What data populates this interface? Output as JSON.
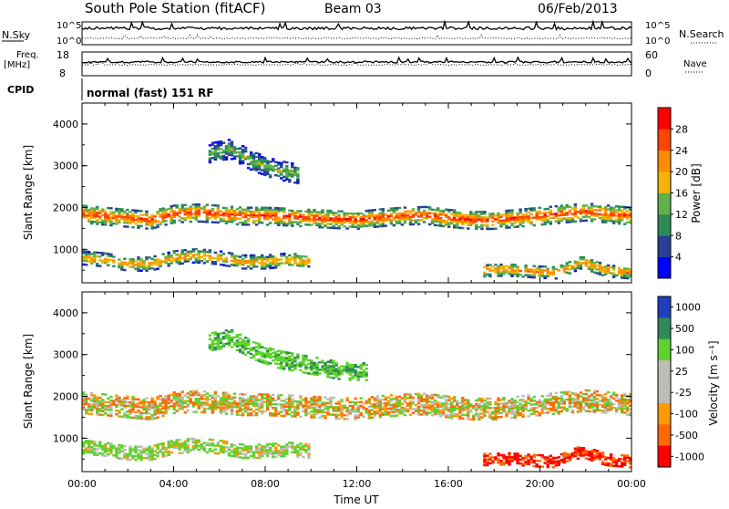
{
  "header": {
    "station": "South Pole Station (fitACF)",
    "beam": "Beam 03",
    "date": "06/Feb/2013"
  },
  "strips": {
    "nsky_label": "N.Sky",
    "nsky_hi": "10^5",
    "nsky_lo": "10^0",
    "nsearch_label": "N.Search",
    "nsearch_hi": "10^5",
    "nsearch_lo": "10^0",
    "freq_label": "Freq.",
    "freq_unit": "[MHz]",
    "freq_hi": "18",
    "freq_lo": "8",
    "nave_label": "Nave",
    "nave_hi": "60",
    "nave_lo": "0",
    "cpid_label": "CPID",
    "cpid_text": "normal (fast) 151 RF"
  },
  "chart_data": [
    {
      "type": "heatmap",
      "name": "power",
      "ylabel": "Slant Range [km]",
      "y_ticks": [
        "1000",
        "2000",
        "3000",
        "4000"
      ],
      "ylim": [
        200,
        4500
      ],
      "xlim": [
        0,
        24
      ],
      "colorbar_label": "Power [dB]",
      "colorbar_ticks": [
        "4",
        "8",
        "12",
        "16",
        "20",
        "24",
        "28"
      ],
      "colors": [
        "#0000ff",
        "#2a3f9a",
        "#2e8b57",
        "#5fb24a",
        "#f2b400",
        "#ff8c00",
        "#ff4500",
        "#ff0000"
      ],
      "bands": [
        {
          "t0": 0.0,
          "t1": 24.0,
          "center": [
            1850,
            1800,
            1750,
            1700,
            1850,
            1880,
            1850,
            1800,
            1800,
            1780,
            1750,
            1720,
            1700,
            1760,
            1800,
            1820,
            1750,
            1700,
            1700,
            1750,
            1800,
            1850,
            1900,
            1850,
            1800
          ],
          "width": 420,
          "peak_db": 28
        },
        {
          "t0": 0.0,
          "t1": 10.0,
          "center": [
            800,
            750,
            650,
            650,
            800,
            850,
            800,
            700,
            700,
            750,
            700
          ],
          "width": 320,
          "peak_db": 22
        },
        {
          "t0": 5.5,
          "t1": 9.5,
          "center": [
            3300,
            3400,
            3100,
            2900,
            2800
          ],
          "width": 450,
          "peak_db": 14
        },
        {
          "t0": 17.5,
          "t1": 24.0,
          "center": [
            500,
            520,
            480,
            450,
            700,
            500,
            450
          ],
          "width": 300,
          "peak_db": 24
        }
      ]
    },
    {
      "type": "heatmap",
      "name": "velocity",
      "xlabel": "Time UT",
      "ylabel": "Slant Range [km]",
      "x_ticks": [
        "00:00",
        "04:00",
        "08:00",
        "12:00",
        "16:00",
        "20:00",
        "00:00"
      ],
      "y_ticks": [
        "1000",
        "2000",
        "3000",
        "4000"
      ],
      "ylim": [
        200,
        4500
      ],
      "xlim": [
        0,
        24
      ],
      "colorbar_label": "Velocity [m s⁻¹]",
      "colorbar_ticks": [
        "1000",
        "500",
        "100",
        "25",
        "-25",
        "-100",
        "-500",
        "-1000"
      ],
      "colors": [
        "#1f3fbf",
        "#2e8b57",
        "#5fd22e",
        "#bdbdb6",
        "#bdbdb6",
        "#ff9a00",
        "#ff6a00",
        "#ff0000"
      ],
      "bands": [
        {
          "t0": 0.0,
          "t1": 24.0,
          "center": [
            1850,
            1800,
            1750,
            1700,
            1850,
            1880,
            1850,
            1800,
            1800,
            1780,
            1750,
            1720,
            1700,
            1760,
            1800,
            1820,
            1750,
            1700,
            1700,
            1750,
            1800,
            1850,
            1900,
            1850,
            1800
          ],
          "width": 500,
          "velocity": 0
        },
        {
          "t0": 0.0,
          "t1": 10.0,
          "center": [
            800,
            750,
            650,
            650,
            800,
            850,
            800,
            700,
            700,
            750,
            700
          ],
          "width": 340,
          "velocity": 150
        },
        {
          "t0": 5.5,
          "t1": 12.5,
          "center": [
            3300,
            3400,
            3100,
            2900,
            2800,
            2700,
            2600,
            2600
          ],
          "width": 420,
          "velocity": 400
        },
        {
          "t0": 17.5,
          "t1": 24.0,
          "center": [
            500,
            520,
            480,
            450,
            700,
            500,
            450
          ],
          "width": 300,
          "velocity": -600
        }
      ]
    }
  ]
}
